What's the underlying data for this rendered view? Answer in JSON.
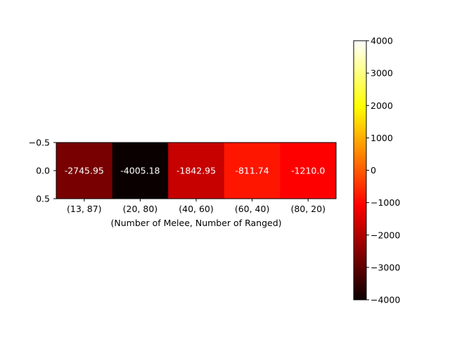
{
  "chart_data": {
    "type": "heatmap",
    "title": "",
    "xlabel": "(Number of Melee, Number of Ranged)",
    "ylabel": "",
    "categories": [
      "(13, 87)",
      "(20, 80)",
      "(40, 60)",
      "(60, 40)",
      "(80, 20)"
    ],
    "values": [
      -2745.95,
      -4005.18,
      -1842.95,
      -811.74,
      -1210.0
    ],
    "value_labels": [
      "-2745.95",
      "-4005.18",
      "-1842.95",
      "-811.74",
      "-1210.0"
    ],
    "y_ticks": [
      "−0.5",
      "0.0",
      "0.5"
    ],
    "colormap": "hot",
    "colorbar": {
      "range": [
        -4000,
        4000
      ],
      "ticks": [
        "4000",
        "3000",
        "2000",
        "1000",
        "0",
        "−1000",
        "−2000",
        "−3000",
        "−4000"
      ]
    },
    "grid": false
  }
}
